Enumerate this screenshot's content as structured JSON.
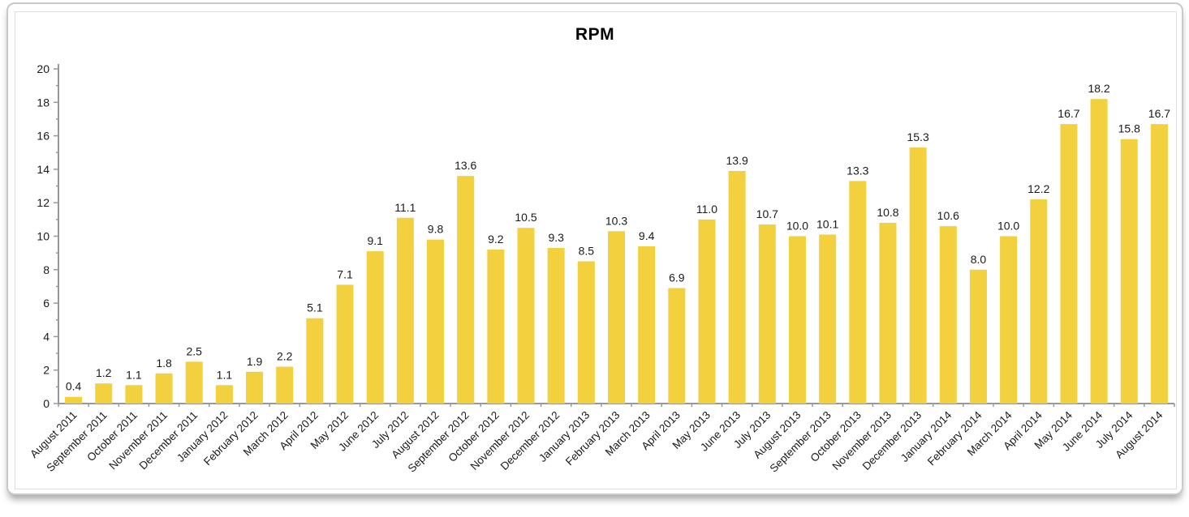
{
  "chart_data": {
    "type": "bar",
    "title": "RPM",
    "categories": [
      "August 2011",
      "September 2011",
      "October 2011",
      "November 2011",
      "December 2011",
      "January 2012",
      "February 2012",
      "March 2012",
      "April 2012",
      "May 2012",
      "June 2012",
      "July 2012",
      "August 2012",
      "September 2012",
      "October 2012",
      "November 2012",
      "December 2012",
      "January 2013",
      "February 2013",
      "March 2013",
      "April 2013",
      "May 2013",
      "June 2013",
      "July 2013",
      "August 2013",
      "September 2013",
      "October 2013",
      "November 2013",
      "December 2013",
      "January 2014",
      "February 2014",
      "March 2014",
      "April 2014",
      "May 2014",
      "June 2014",
      "July 2014",
      "August 2014"
    ],
    "values": [
      0.4,
      1.2,
      1.1,
      1.8,
      2.5,
      1.1,
      1.9,
      2.2,
      5.1,
      7.1,
      9.1,
      11.1,
      9.8,
      13.6,
      9.2,
      10.5,
      9.3,
      8.5,
      10.3,
      9.4,
      6.9,
      11.0,
      13.9,
      10.7,
      10.0,
      10.1,
      13.3,
      10.8,
      15.3,
      10.6,
      8.0,
      10.0,
      12.2,
      16.7,
      18.2,
      15.8,
      16.7
    ],
    "xlabel": "",
    "ylabel": "",
    "ylim": [
      0,
      20
    ],
    "ytick_step": 2,
    "yticks": [
      0,
      2,
      4,
      6,
      8,
      10,
      12,
      14,
      16,
      18,
      20
    ],
    "grid": false,
    "legend": "none",
    "value_labels_shown": true,
    "bar_color": "#F2D03E",
    "axis_color": "#999999",
    "text_color": "#1a1a1a",
    "frame_color": "#dedede"
  }
}
